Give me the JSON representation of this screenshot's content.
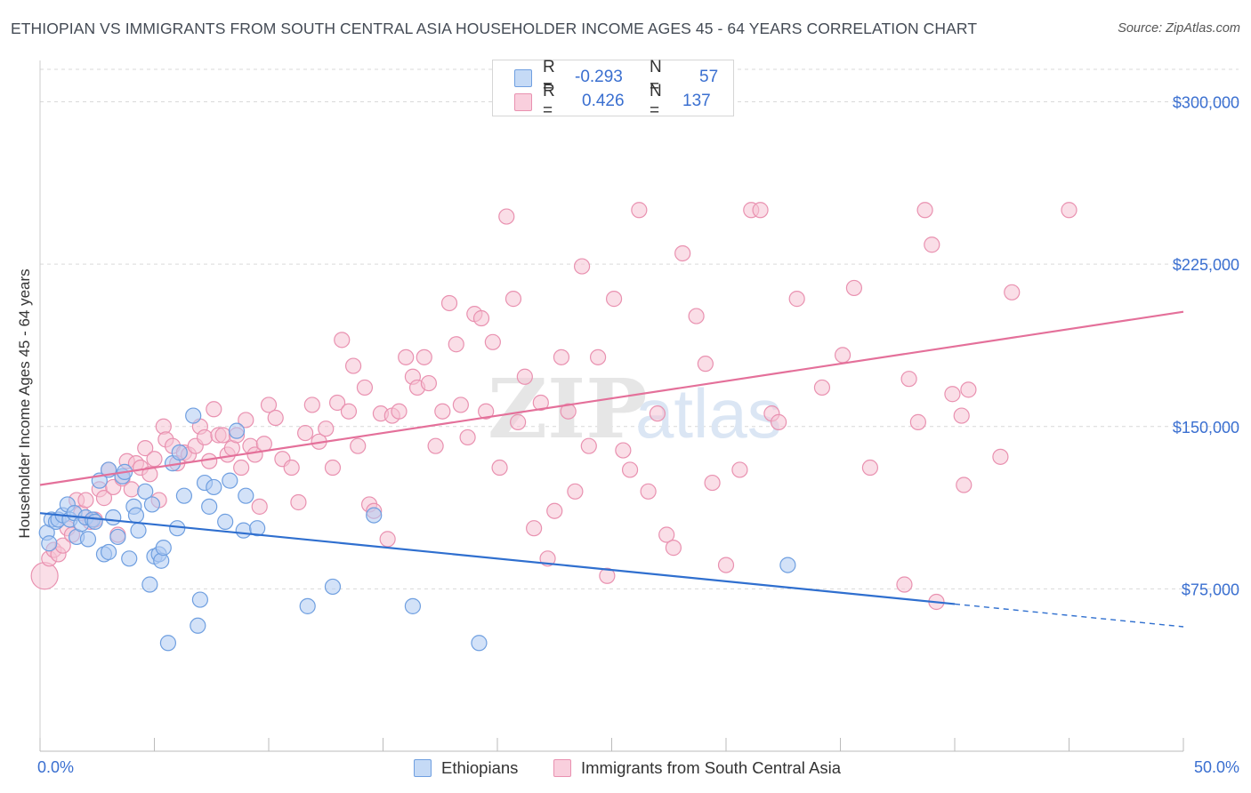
{
  "title": "ETHIOPIAN VS IMMIGRANTS FROM SOUTH CENTRAL ASIA HOUSEHOLDER INCOME AGES 45 - 64 YEARS CORRELATION CHART",
  "source": "Source: ZipAtlas.com",
  "watermark": {
    "bold": "ZIP",
    "light": "atlas"
  },
  "legend": {
    "r_label": "R =",
    "n_label": "N =",
    "rows": [
      {
        "r": "-0.293",
        "n": "57"
      },
      {
        "r": "0.426",
        "n": "137"
      }
    ]
  },
  "colors": {
    "ethiopians_fill": "#aecbf2",
    "ethiopians_stroke": "#6f9fe0",
    "ethiopians_line": "#2f6fcf",
    "immigrants_fill": "#f6c2d3",
    "immigrants_stroke": "#e991b0",
    "immigrants_line": "#e4709a",
    "tick_text": "#3a6fd0",
    "grid": "#d9d9d9"
  },
  "chart_data": {
    "type": "scatter",
    "title": "ETHIOPIAN VS IMMIGRANTS FROM SOUTH CENTRAL ASIA HOUSEHOLDER INCOME AGES 45 - 64 YEARS CORRELATION CHART",
    "xlabel": "",
    "ylabel": "Householder Income Ages 45 - 64 years",
    "xlim": [
      0,
      50
    ],
    "ylim": [
      0,
      315000
    ],
    "x_tick_labels": [
      "0.0%",
      "50.0%"
    ],
    "y_ticks": [
      75000,
      150000,
      225000,
      300000
    ],
    "y_tick_labels": [
      "$75,000",
      "$150,000",
      "$225,000",
      "$300,000"
    ],
    "grid": "horizontal dashed",
    "legend_position": "top-center",
    "series": [
      {
        "name": "Ethiopians",
        "r": -0.293,
        "n": 57,
        "trend": {
          "x0": 0,
          "y0": 110000,
          "x1": 40,
          "y1": 68000,
          "dashed_to_x": 50,
          "dashed_to_y": 57500
        },
        "points": [
          [
            0.3,
            101000
          ],
          [
            0.4,
            96000
          ],
          [
            0.5,
            107000
          ],
          [
            0.7,
            106000
          ],
          [
            0.8,
            107000
          ],
          [
            1.0,
            109000
          ],
          [
            1.2,
            114000
          ],
          [
            1.3,
            107000
          ],
          [
            1.5,
            110000
          ],
          [
            1.6,
            99000
          ],
          [
            1.8,
            105000
          ],
          [
            2.0,
            108000
          ],
          [
            2.1,
            98000
          ],
          [
            2.3,
            107000
          ],
          [
            2.4,
            106000
          ],
          [
            2.6,
            125000
          ],
          [
            2.8,
            91000
          ],
          [
            3.0,
            92000
          ],
          [
            3.0,
            130000
          ],
          [
            3.2,
            108000
          ],
          [
            3.4,
            99000
          ],
          [
            3.6,
            127000
          ],
          [
            3.7,
            129000
          ],
          [
            3.9,
            89000
          ],
          [
            4.1,
            113000
          ],
          [
            4.2,
            109000
          ],
          [
            4.3,
            102000
          ],
          [
            4.6,
            120000
          ],
          [
            4.8,
            77000
          ],
          [
            4.9,
            114000
          ],
          [
            5.0,
            90000
          ],
          [
            5.2,
            91000
          ],
          [
            5.3,
            88000
          ],
          [
            5.4,
            94000
          ],
          [
            5.6,
            50000
          ],
          [
            5.8,
            133000
          ],
          [
            6.0,
            103000
          ],
          [
            6.1,
            138000
          ],
          [
            6.3,
            118000
          ],
          [
            6.7,
            155000
          ],
          [
            6.9,
            58000
          ],
          [
            7.0,
            70000
          ],
          [
            7.2,
            124000
          ],
          [
            7.4,
            113000
          ],
          [
            7.6,
            122000
          ],
          [
            8.1,
            106000
          ],
          [
            8.3,
            125000
          ],
          [
            8.6,
            148000
          ],
          [
            8.9,
            102000
          ],
          [
            9.0,
            118000
          ],
          [
            9.5,
            103000
          ],
          [
            11.7,
            67000
          ],
          [
            12.8,
            76000
          ],
          [
            14.6,
            109000
          ],
          [
            16.3,
            67000
          ],
          [
            19.2,
            50000
          ],
          [
            32.7,
            86000
          ]
        ]
      },
      {
        "name": "Immigrants from South Central Asia",
        "r": 0.426,
        "n": 137,
        "trend": {
          "x0": 0,
          "y0": 123000,
          "x1": 50,
          "y1": 203000
        },
        "points": [
          [
            0.2,
            81000
          ],
          [
            0.4,
            89000
          ],
          [
            0.6,
            93000
          ],
          [
            0.8,
            91000
          ],
          [
            1.0,
            95000
          ],
          [
            1.2,
            103000
          ],
          [
            1.4,
            100000
          ],
          [
            1.6,
            116000
          ],
          [
            1.8,
            110000
          ],
          [
            2.0,
            116000
          ],
          [
            2.2,
            106000
          ],
          [
            2.4,
            107000
          ],
          [
            2.6,
            121000
          ],
          [
            2.8,
            117000
          ],
          [
            3.0,
            130000
          ],
          [
            3.2,
            122000
          ],
          [
            3.4,
            100000
          ],
          [
            3.6,
            126000
          ],
          [
            3.8,
            134000
          ],
          [
            4.0,
            121000
          ],
          [
            4.2,
            133000
          ],
          [
            4.4,
            131000
          ],
          [
            4.6,
            140000
          ],
          [
            4.8,
            128000
          ],
          [
            5.0,
            135000
          ],
          [
            5.2,
            116000
          ],
          [
            5.4,
            150000
          ],
          [
            5.5,
            144000
          ],
          [
            5.8,
            141000
          ],
          [
            6.0,
            133000
          ],
          [
            6.3,
            138000
          ],
          [
            6.5,
            137000
          ],
          [
            6.8,
            141000
          ],
          [
            7.0,
            150000
          ],
          [
            7.2,
            145000
          ],
          [
            7.4,
            134000
          ],
          [
            7.6,
            158000
          ],
          [
            7.8,
            146000
          ],
          [
            8.0,
            146000
          ],
          [
            8.2,
            137000
          ],
          [
            8.4,
            140000
          ],
          [
            8.6,
            146000
          ],
          [
            8.8,
            131000
          ],
          [
            9.0,
            153000
          ],
          [
            9.2,
            141000
          ],
          [
            9.4,
            137000
          ],
          [
            9.6,
            113000
          ],
          [
            9.8,
            142000
          ],
          [
            10.0,
            160000
          ],
          [
            10.3,
            154000
          ],
          [
            10.6,
            135000
          ],
          [
            11.0,
            131000
          ],
          [
            11.3,
            115000
          ],
          [
            11.6,
            147000
          ],
          [
            11.9,
            160000
          ],
          [
            12.2,
            143000
          ],
          [
            12.5,
            149000
          ],
          [
            12.8,
            131000
          ],
          [
            13.0,
            161000
          ],
          [
            13.2,
            190000
          ],
          [
            13.5,
            157000
          ],
          [
            13.7,
            178000
          ],
          [
            13.9,
            141000
          ],
          [
            14.2,
            168000
          ],
          [
            14.4,
            114000
          ],
          [
            14.6,
            111000
          ],
          [
            14.9,
            156000
          ],
          [
            15.2,
            98000
          ],
          [
            15.4,
            155000
          ],
          [
            15.7,
            157000
          ],
          [
            16.0,
            182000
          ],
          [
            16.3,
            173000
          ],
          [
            16.5,
            168000
          ],
          [
            16.8,
            182000
          ],
          [
            17.0,
            170000
          ],
          [
            17.3,
            141000
          ],
          [
            17.6,
            157000
          ],
          [
            17.9,
            207000
          ],
          [
            18.2,
            188000
          ],
          [
            18.4,
            160000
          ],
          [
            18.7,
            145000
          ],
          [
            19.0,
            202000
          ],
          [
            19.3,
            200000
          ],
          [
            19.5,
            157000
          ],
          [
            19.8,
            189000
          ],
          [
            20.1,
            131000
          ],
          [
            20.4,
            247000
          ],
          [
            20.7,
            209000
          ],
          [
            20.9,
            152000
          ],
          [
            21.2,
            173000
          ],
          [
            21.6,
            103000
          ],
          [
            21.9,
            161000
          ],
          [
            22.2,
            89000
          ],
          [
            22.5,
            111000
          ],
          [
            22.8,
            182000
          ],
          [
            23.1,
            157000
          ],
          [
            23.4,
            120000
          ],
          [
            23.7,
            224000
          ],
          [
            24.0,
            141000
          ],
          [
            24.4,
            182000
          ],
          [
            24.8,
            81000
          ],
          [
            25.1,
            209000
          ],
          [
            25.5,
            139000
          ],
          [
            25.8,
            130000
          ],
          [
            26.2,
            250000
          ],
          [
            26.6,
            120000
          ],
          [
            27.0,
            156000
          ],
          [
            27.4,
            100000
          ],
          [
            27.7,
            94000
          ],
          [
            28.1,
            230000
          ],
          [
            28.7,
            201000
          ],
          [
            29.1,
            179000
          ],
          [
            29.4,
            124000
          ],
          [
            30.0,
            86000
          ],
          [
            30.6,
            130000
          ],
          [
            31.1,
            250000
          ],
          [
            31.5,
            250000
          ],
          [
            32.0,
            156000
          ],
          [
            32.3,
            152000
          ],
          [
            33.1,
            209000
          ],
          [
            34.2,
            168000
          ],
          [
            35.1,
            183000
          ],
          [
            35.6,
            214000
          ],
          [
            36.3,
            131000
          ],
          [
            37.8,
            77000
          ],
          [
            38.0,
            172000
          ],
          [
            38.4,
            152000
          ],
          [
            38.7,
            250000
          ],
          [
            39.0,
            234000
          ],
          [
            39.2,
            69000
          ],
          [
            39.9,
            165000
          ],
          [
            40.3,
            155000
          ],
          [
            40.4,
            123000
          ],
          [
            40.6,
            167000
          ],
          [
            42.0,
            136000
          ],
          [
            42.5,
            212000
          ],
          [
            45.0,
            250000
          ]
        ]
      }
    ]
  }
}
